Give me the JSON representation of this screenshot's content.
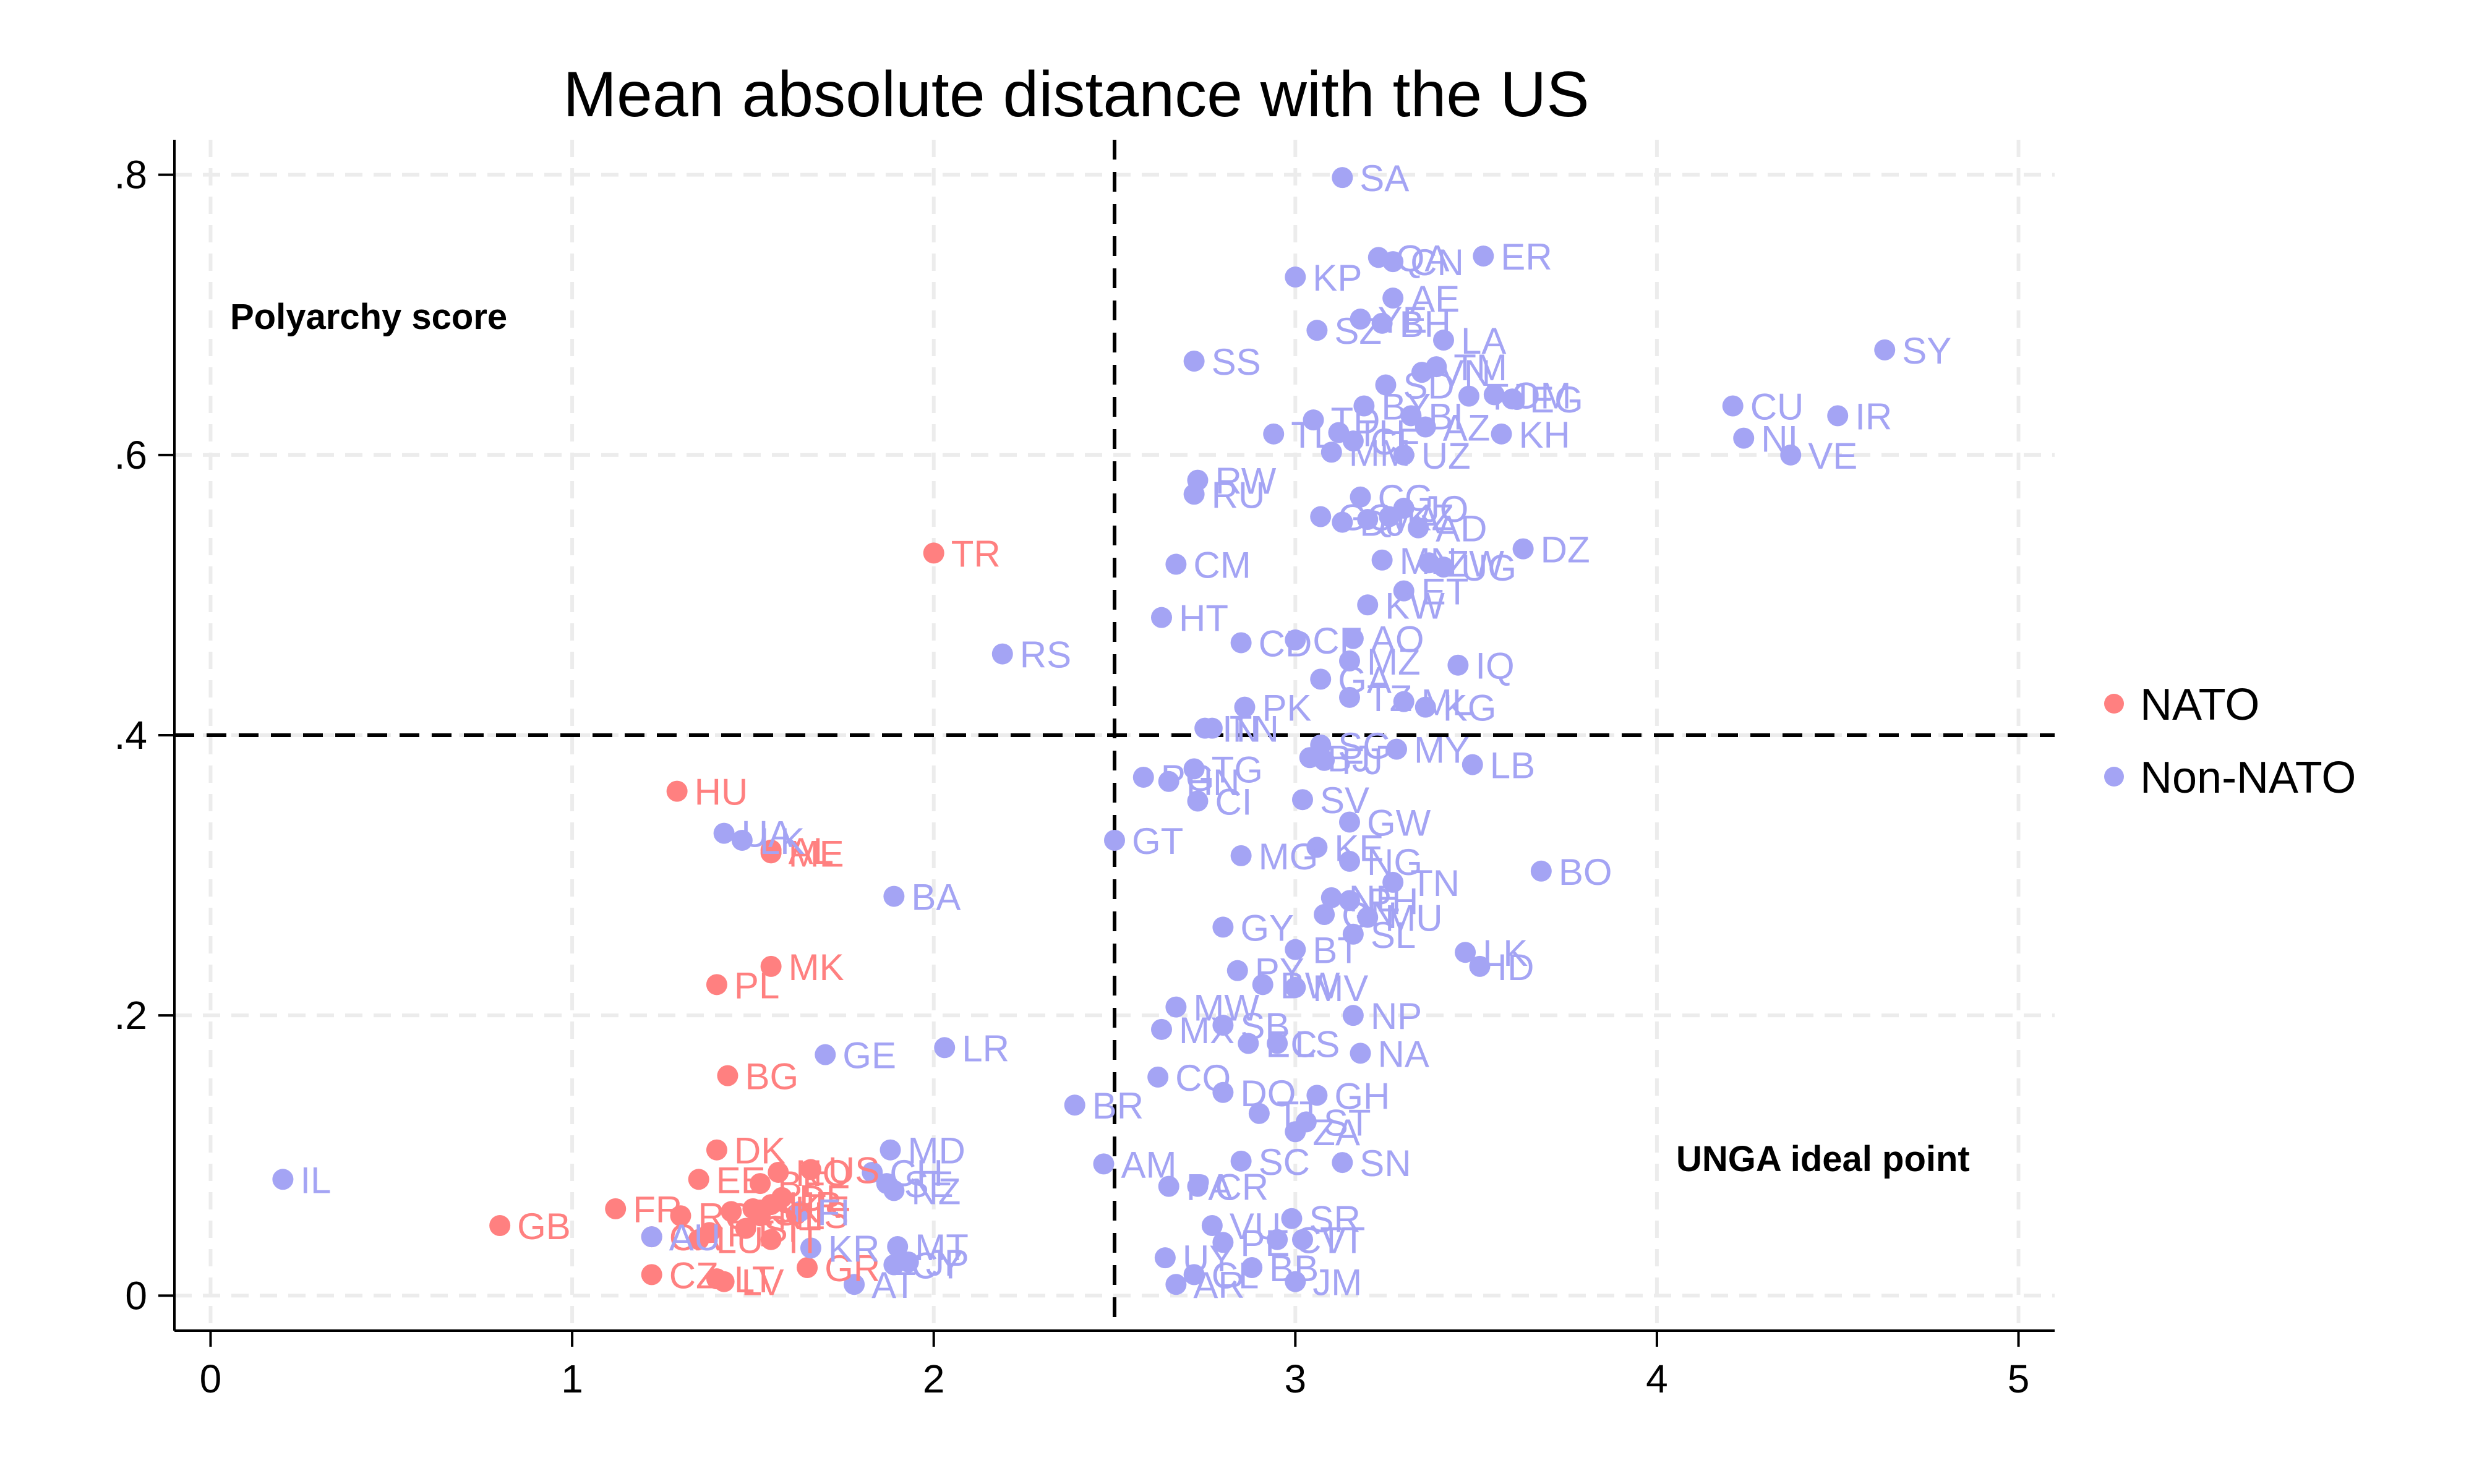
{
  "chart_data": {
    "type": "scatter",
    "title": "Mean absolute distance with the US",
    "xlabel": "",
    "ylabel": "",
    "xlim": [
      -0.1,
      5.1
    ],
    "ylim": [
      -0.025,
      0.825
    ],
    "x_ticks": [
      0,
      1,
      2,
      3,
      4,
      5
    ],
    "x_tick_labels": [
      "0",
      "1",
      "2",
      "3",
      "4",
      "5"
    ],
    "y_ticks": [
      0,
      0.2,
      0.4,
      0.6,
      0.8
    ],
    "y_tick_labels": [
      "0",
      ".2",
      ".4",
      ".6",
      ".8"
    ],
    "grid": true,
    "reference_lines": {
      "x": 2.5,
      "y": 0.4
    },
    "annotations": [
      {
        "text": "Polyarchy score",
        "position": "top-left"
      },
      {
        "text": "UNGA ideal point",
        "position": "bottom-right"
      }
    ],
    "legend": {
      "position": "right"
    },
    "series": [
      {
        "name": "NATO",
        "color": "#ff8080",
        "points": [
          {
            "label": "TR",
            "x": 2.0,
            "y": 0.53
          },
          {
            "label": "HU",
            "x": 1.29,
            "y": 0.36
          },
          {
            "label": "AL",
            "x": 1.55,
            "y": 0.318
          },
          {
            "label": "ME",
            "x": 1.55,
            "y": 0.316
          },
          {
            "label": "MK",
            "x": 1.55,
            "y": 0.235
          },
          {
            "label": "PL",
            "x": 1.4,
            "y": 0.222
          },
          {
            "label": "BG",
            "x": 1.43,
            "y": 0.157
          },
          {
            "label": "DK",
            "x": 1.4,
            "y": 0.104
          },
          {
            "label": "US",
            "x": 1.66,
            "y": 0.09
          },
          {
            "label": "NO",
            "x": 1.57,
            "y": 0.088
          },
          {
            "label": "EE",
            "x": 1.35,
            "y": 0.083
          },
          {
            "label": "BE",
            "x": 1.52,
            "y": 0.08
          },
          {
            "label": "DE",
            "x": 1.58,
            "y": 0.07
          },
          {
            "label": "HR",
            "x": 1.55,
            "y": 0.065
          },
          {
            "label": "FR",
            "x": 1.12,
            "y": 0.062
          },
          {
            "label": "GB",
            "x": 0.8,
            "y": 0.05
          },
          {
            "label": "SK",
            "x": 1.5,
            "y": 0.062
          },
          {
            "label": "IS",
            "x": 1.62,
            "y": 0.058
          },
          {
            "label": "ES",
            "x": 1.44,
            "y": 0.06
          },
          {
            "label": "NL",
            "x": 1.52,
            "y": 0.057
          },
          {
            "label": "RO",
            "x": 1.3,
            "y": 0.057
          },
          {
            "label": "CA",
            "x": 1.22,
            "y": 0.042
          },
          {
            "label": "SI",
            "x": 1.48,
            "y": 0.048
          },
          {
            "label": "LU",
            "x": 1.35,
            "y": 0.04
          },
          {
            "label": "IT",
            "x": 1.55,
            "y": 0.04
          },
          {
            "label": "PT",
            "x": 1.38,
            "y": 0.045
          },
          {
            "label": "GR",
            "x": 1.65,
            "y": 0.02
          },
          {
            "label": "LT",
            "x": 1.4,
            "y": 0.012
          },
          {
            "label": "LV",
            "x": 1.42,
            "y": 0.01
          },
          {
            "label": "CZ",
            "x": 1.22,
            "y": 0.015
          }
        ]
      },
      {
        "name": "Non-NATO",
        "color": "#a4a4f4",
        "points": [
          {
            "label": "SA",
            "x": 3.13,
            "y": 0.798
          },
          {
            "label": "ER",
            "x": 3.52,
            "y": 0.742
          },
          {
            "label": "QA",
            "x": 3.23,
            "y": 0.741
          },
          {
            "label": "CN",
            "x": 3.27,
            "y": 0.738
          },
          {
            "label": "KP",
            "x": 3.0,
            "y": 0.727
          },
          {
            "label": "AE",
            "x": 3.27,
            "y": 0.712
          },
          {
            "label": "YE",
            "x": 3.18,
            "y": 0.697
          },
          {
            "label": "BH",
            "x": 3.24,
            "y": 0.694
          },
          {
            "label": "SZ",
            "x": 3.06,
            "y": 0.689
          },
          {
            "label": "LA",
            "x": 3.41,
            "y": 0.682
          },
          {
            "label": "SY",
            "x": 4.63,
            "y": 0.675
          },
          {
            "label": "SS",
            "x": 2.72,
            "y": 0.667
          },
          {
            "label": "TM",
            "x": 3.39,
            "y": 0.663
          },
          {
            "label": "VN",
            "x": 3.35,
            "y": 0.659
          },
          {
            "label": "SD",
            "x": 3.25,
            "y": 0.65
          },
          {
            "label": "OM",
            "x": 3.55,
            "y": 0.643
          },
          {
            "label": "TJ",
            "x": 3.48,
            "y": 0.642
          },
          {
            "label": "EG",
            "x": 3.6,
            "y": 0.64
          },
          {
            "label": "CU",
            "x": 4.21,
            "y": 0.635
          },
          {
            "label": "BY",
            "x": 3.19,
            "y": 0.635
          },
          {
            "label": "IR",
            "x": 4.5,
            "y": 0.628
          },
          {
            "label": "BI",
            "x": 3.32,
            "y": 0.628
          },
          {
            "label": "TD",
            "x": 3.05,
            "y": 0.625
          },
          {
            "label": "AZ",
            "x": 3.36,
            "y": 0.62
          },
          {
            "label": "TH",
            "x": 3.12,
            "y": 0.616
          },
          {
            "label": "KH",
            "x": 3.57,
            "y": 0.615
          },
          {
            "label": "TL",
            "x": 2.94,
            "y": 0.615
          },
          {
            "label": "NI",
            "x": 4.24,
            "y": 0.612
          },
          {
            "label": "CF",
            "x": 3.16,
            "y": 0.61
          },
          {
            "label": "MM",
            "x": 3.1,
            "y": 0.602
          },
          {
            "label": "UZ",
            "x": 3.3,
            "y": 0.6
          },
          {
            "label": "VE",
            "x": 4.37,
            "y": 0.6
          },
          {
            "label": "RW",
            "x": 2.73,
            "y": 0.582
          },
          {
            "label": "RU",
            "x": 2.72,
            "y": 0.572
          },
          {
            "label": "CG",
            "x": 3.18,
            "y": 0.57
          },
          {
            "label": "JO",
            "x": 3.3,
            "y": 0.562
          },
          {
            "label": "GQ",
            "x": 3.07,
            "y": 0.556
          },
          {
            "label": "MA",
            "x": 3.2,
            "y": 0.554
          },
          {
            "label": "KZ",
            "x": 3.26,
            "y": 0.556
          },
          {
            "label": "DJ",
            "x": 3.13,
            "y": 0.552
          },
          {
            "label": "AD",
            "x": 3.34,
            "y": 0.548
          },
          {
            "label": "DZ",
            "x": 3.63,
            "y": 0.533
          },
          {
            "label": "TR2",
            "x": 0,
            "y": 0,
            "hidden": true
          },
          {
            "label": "CM",
            "x": 2.67,
            "y": 0.522
          },
          {
            "label": "MN",
            "x": 3.24,
            "y": 0.525
          },
          {
            "label": "ZW",
            "x": 3.37,
            "y": 0.523
          },
          {
            "label": "UG",
            "x": 3.41,
            "y": 0.52
          },
          {
            "label": "ET",
            "x": 3.3,
            "y": 0.503
          },
          {
            "label": "KW",
            "x": 3.2,
            "y": 0.493
          },
          {
            "label": "HT",
            "x": 2.63,
            "y": 0.484
          },
          {
            "label": "CD",
            "x": 2.85,
            "y": 0.466
          },
          {
            "label": "CF2",
            "x": 3.0,
            "y": 0.468
          },
          {
            "label": "AO",
            "x": 3.16,
            "y": 0.469
          },
          {
            "label": "RS",
            "x": 2.19,
            "y": 0.458
          },
          {
            "label": "MZ",
            "x": 3.15,
            "y": 0.453
          },
          {
            "label": "IQ",
            "x": 3.45,
            "y": 0.45
          },
          {
            "label": "GA",
            "x": 3.07,
            "y": 0.44
          },
          {
            "label": "TZ",
            "x": 3.15,
            "y": 0.427
          },
          {
            "label": "ML",
            "x": 3.3,
            "y": 0.424
          },
          {
            "label": "KG",
            "x": 3.36,
            "y": 0.42
          },
          {
            "label": "PK",
            "x": 2.86,
            "y": 0.42
          },
          {
            "label": "TN",
            "x": 2.77,
            "y": 0.405
          },
          {
            "label": "IN",
            "x": 2.75,
            "y": 0.405
          },
          {
            "label": "MY",
            "x": 3.28,
            "y": 0.39
          },
          {
            "label": "SG",
            "x": 3.07,
            "y": 0.393
          },
          {
            "label": "BJ",
            "x": 3.04,
            "y": 0.384
          },
          {
            "label": "FJ",
            "x": 3.08,
            "y": 0.382
          },
          {
            "label": "TG",
            "x": 2.72,
            "y": 0.376
          },
          {
            "label": "LB",
            "x": 3.49,
            "y": 0.379
          },
          {
            "label": "PG",
            "x": 2.58,
            "y": 0.37
          },
          {
            "label": "HN",
            "x": 2.65,
            "y": 0.367
          },
          {
            "label": "SV",
            "x": 3.02,
            "y": 0.354
          },
          {
            "label": "CI",
            "x": 2.73,
            "y": 0.353
          },
          {
            "label": "GW",
            "x": 3.15,
            "y": 0.338
          },
          {
            "label": "GT",
            "x": 2.5,
            "y": 0.325
          },
          {
            "label": "UA",
            "x": 1.42,
            "y": 0.33
          },
          {
            "label": "LK2",
            "x": 1.47,
            "y": 0.325
          },
          {
            "label": "KE",
            "x": 3.06,
            "y": 0.32
          },
          {
            "label": "MG",
            "x": 2.85,
            "y": 0.314
          },
          {
            "label": "NG",
            "x": 3.15,
            "y": 0.31
          },
          {
            "label": "BO",
            "x": 3.68,
            "y": 0.303
          },
          {
            "label": "BA",
            "x": 1.89,
            "y": 0.285
          },
          {
            "label": "TN2",
            "x": 3.27,
            "y": 0.295
          },
          {
            "label": "NE",
            "x": 3.1,
            "y": 0.284
          },
          {
            "label": "PH",
            "x": 3.15,
            "y": 0.282
          },
          {
            "label": "GN",
            "x": 3.08,
            "y": 0.272
          },
          {
            "label": "MU",
            "x": 3.2,
            "y": 0.27
          },
          {
            "label": "GY",
            "x": 2.8,
            "y": 0.263
          },
          {
            "label": "SL",
            "x": 3.16,
            "y": 0.258
          },
          {
            "label": "BT",
            "x": 3.0,
            "y": 0.247
          },
          {
            "label": "LK",
            "x": 3.47,
            "y": 0.245
          },
          {
            "label": "ID",
            "x": 3.51,
            "y": 0.235
          },
          {
            "label": "PY",
            "x": 2.84,
            "y": 0.232
          },
          {
            "label": "BW",
            "x": 2.91,
            "y": 0.222
          },
          {
            "label": "MV",
            "x": 3.0,
            "y": 0.22
          },
          {
            "label": "MW",
            "x": 2.67,
            "y": 0.206
          },
          {
            "label": "NP",
            "x": 3.16,
            "y": 0.2
          },
          {
            "label": "MX",
            "x": 2.63,
            "y": 0.19
          },
          {
            "label": "SB",
            "x": 2.8,
            "y": 0.193
          },
          {
            "label": "EC",
            "x": 2.87,
            "y": 0.18
          },
          {
            "label": "LS",
            "x": 2.95,
            "y": 0.18
          },
          {
            "label": "NA",
            "x": 3.18,
            "y": 0.173
          },
          {
            "label": "GE",
            "x": 1.7,
            "y": 0.172
          },
          {
            "label": "LR",
            "x": 2.03,
            "y": 0.177
          },
          {
            "label": "CO",
            "x": 2.62,
            "y": 0.156
          },
          {
            "label": "DO",
            "x": 2.8,
            "y": 0.145
          },
          {
            "label": "GH",
            "x": 3.06,
            "y": 0.143
          },
          {
            "label": "BR",
            "x": 2.39,
            "y": 0.136
          },
          {
            "label": "TT2",
            "x": 2.9,
            "y": 0.13
          },
          {
            "label": "ST",
            "x": 3.03,
            "y": 0.124
          },
          {
            "label": "ZA",
            "x": 3.0,
            "y": 0.117
          },
          {
            "label": "MD",
            "x": 1.88,
            "y": 0.104
          },
          {
            "label": "SC",
            "x": 2.85,
            "y": 0.096
          },
          {
            "label": "SN",
            "x": 3.13,
            "y": 0.095
          },
          {
            "label": "AM",
            "x": 2.47,
            "y": 0.094
          },
          {
            "label": "CH",
            "x": 1.83,
            "y": 0.088
          },
          {
            "label": "IL",
            "x": 0.2,
            "y": 0.083
          },
          {
            "label": "SE",
            "x": 1.87,
            "y": 0.08
          },
          {
            "label": "NZ",
            "x": 1.89,
            "y": 0.075
          },
          {
            "label": "PA",
            "x": 2.65,
            "y": 0.078
          },
          {
            "label": "CR",
            "x": 2.73,
            "y": 0.078
          },
          {
            "label": "SR",
            "x": 2.99,
            "y": 0.055
          },
          {
            "label": "VU",
            "x": 2.77,
            "y": 0.05
          },
          {
            "label": "TT",
            "x": 3.02,
            "y": 0.04
          },
          {
            "label": "PE",
            "x": 2.8,
            "y": 0.038
          },
          {
            "label": "BB",
            "x": 2.88,
            "y": 0.02
          },
          {
            "label": "FI",
            "x": 1.63,
            "y": 0.06
          },
          {
            "label": "KR",
            "x": 1.66,
            "y": 0.034
          },
          {
            "label": "MT",
            "x": 1.9,
            "y": 0.035
          },
          {
            "label": "JP",
            "x": 1.93,
            "y": 0.024
          },
          {
            "label": "CY",
            "x": 1.89,
            "y": 0.022
          },
          {
            "label": "AT",
            "x": 1.78,
            "y": 0.008
          },
          {
            "label": "AU",
            "x": 1.22,
            "y": 0.042
          },
          {
            "label": "UY",
            "x": 2.64,
            "y": 0.027
          },
          {
            "label": "CL",
            "x": 2.72,
            "y": 0.015
          },
          {
            "label": "AR",
            "x": 2.67,
            "y": 0.008
          },
          {
            "label": "JM",
            "x": 3.0,
            "y": 0.01
          },
          {
            "label": "CV",
            "x": 2.95,
            "y": 0.04
          }
        ]
      }
    ]
  }
}
